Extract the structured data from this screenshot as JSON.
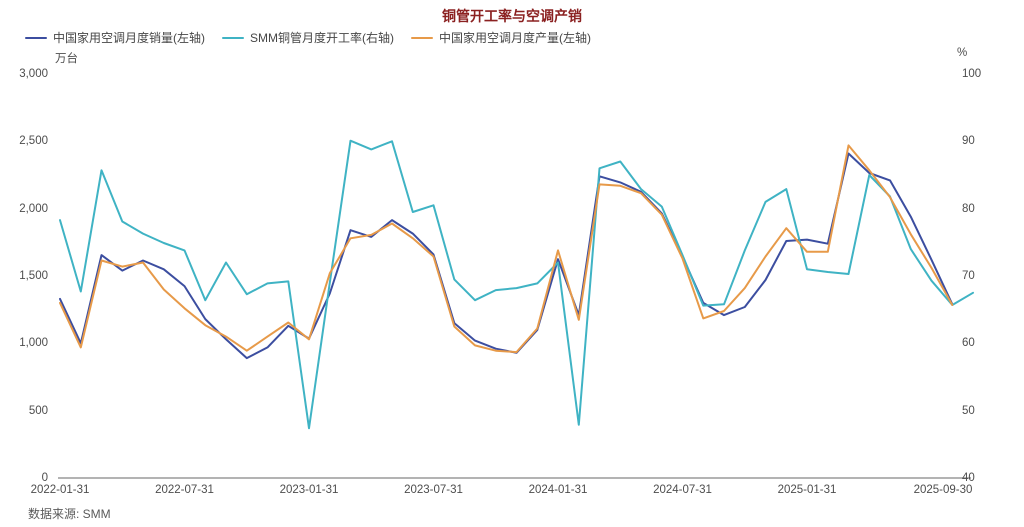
{
  "title": "铜管开工率与空调产销",
  "title_color": "#8b2121",
  "source": "数据来源: SMM",
  "legend": {
    "items": [
      {
        "label": "中国家用空调月度销量(左轴)",
        "color": "#3c4ea0"
      },
      {
        "label": "SMM铜管月度开工率(右轴)",
        "color": "#3fb3c4"
      },
      {
        "label": "中国家用空调月度产量(左轴)",
        "color": "#e79a49"
      }
    ]
  },
  "axes": {
    "left": {
      "unit": "万台",
      "tick_labels": [
        "3,000",
        "2,500",
        "2,000",
        "1,500",
        "1,000",
        "500",
        "0"
      ],
      "tick_values": [
        3000,
        2500,
        2000,
        1500,
        1000,
        500,
        0
      ]
    },
    "right": {
      "unit": "%",
      "tick_labels": [
        "100",
        "90",
        "80",
        "70",
        "60",
        "50",
        "40"
      ],
      "tick_values": [
        100,
        90,
        80,
        70,
        60,
        50,
        40
      ]
    },
    "x": {
      "labels": [
        {
          "text": "2022-01-31",
          "index": 0
        },
        {
          "text": "2022-07-31",
          "index": 6
        },
        {
          "text": "2023-01-31",
          "index": 12
        },
        {
          "text": "2023-07-31",
          "index": 18
        },
        {
          "text": "2024-01-31",
          "index": 24
        },
        {
          "text": "2024-07-31",
          "index": 30
        },
        {
          "text": "2025-01-31",
          "index": 36
        },
        {
          "text": "2025-09-30",
          "index": 44
        }
      ]
    }
  },
  "chart_data": {
    "type": "line",
    "title": "铜管开工率与空调产销",
    "x": [
      "2022-01-31",
      "2022-02-28",
      "2022-03-31",
      "2022-04-30",
      "2022-05-31",
      "2022-06-30",
      "2022-07-31",
      "2022-08-31",
      "2022-09-30",
      "2022-10-31",
      "2022-11-30",
      "2022-12-31",
      "2023-01-31",
      "2023-02-28",
      "2023-03-31",
      "2023-04-30",
      "2023-05-31",
      "2023-06-30",
      "2023-07-31",
      "2023-08-31",
      "2023-09-30",
      "2023-10-31",
      "2023-11-30",
      "2023-12-31",
      "2024-01-31",
      "2024-02-29",
      "2024-03-31",
      "2024-04-30",
      "2024-05-31",
      "2024-06-30",
      "2024-07-31",
      "2024-08-31",
      "2024-09-30",
      "2024-10-31",
      "2024-11-30",
      "2024-12-31",
      "2025-01-31",
      "2025-02-28",
      "2025-03-31",
      "2025-04-30",
      "2025-05-31",
      "2025-06-30",
      "2025-07-31",
      "2025-08-31",
      "2025-09-30"
    ],
    "left_axis": {
      "label": "万台",
      "range": [
        0,
        3000
      ]
    },
    "right_axis": {
      "label": "%",
      "range": [
        40,
        100
      ]
    },
    "grid": false,
    "legend_position": "top-left",
    "series": [
      {
        "name": "中国家用空调月度销量(左轴)",
        "axis": "left",
        "color": "#3c4ea0",
        "values": [
          1330,
          1000,
          1655,
          1540,
          1615,
          1550,
          1425,
          1180,
          1030,
          890,
          970,
          1130,
          1035,
          1370,
          1840,
          1790,
          1915,
          1815,
          1660,
          1150,
          1020,
          960,
          930,
          1100,
          1625,
          1210,
          2240,
          2195,
          2125,
          1965,
          1645,
          1300,
          1210,
          1270,
          1470,
          1760,
          1770,
          1740,
          2410,
          2265,
          2210,
          1940,
          1620,
          1290,
          null
        ]
      },
      {
        "name": "SMM铜管月度开工率(右轴)",
        "axis": "right",
        "color": "#3fb3c4",
        "values": [
          78.3,
          67.7,
          85.7,
          78.1,
          76.3,
          74.9,
          73.8,
          66.4,
          72.0,
          67.3,
          68.9,
          69.2,
          47.4,
          69.0,
          90.1,
          88.8,
          90.0,
          79.5,
          80.5,
          69.5,
          66.4,
          67.9,
          68.2,
          68.9,
          72.0,
          47.9,
          86.0,
          87.0,
          82.9,
          80.3,
          73.1,
          65.6,
          65.8,
          73.8,
          81.0,
          82.9,
          71.0,
          70.6,
          70.3,
          85.0,
          81.8,
          74.0,
          69.3,
          65.7,
          67.5
        ]
      },
      {
        "name": "中国家用空调月度产量(左轴)",
        "axis": "left",
        "color": "#e79a49",
        "values": [
          1300,
          970,
          1615,
          1570,
          1600,
          1400,
          1260,
          1135,
          1050,
          945,
          1050,
          1155,
          1030,
          1520,
          1780,
          1805,
          1890,
          1780,
          1645,
          1125,
          985,
          945,
          935,
          1110,
          1690,
          1175,
          2180,
          2170,
          2115,
          1955,
          1630,
          1185,
          1240,
          1410,
          1645,
          1855,
          1680,
          1680,
          2470,
          2285,
          2085,
          1810,
          1560,
          1285,
          null
        ]
      }
    ]
  }
}
